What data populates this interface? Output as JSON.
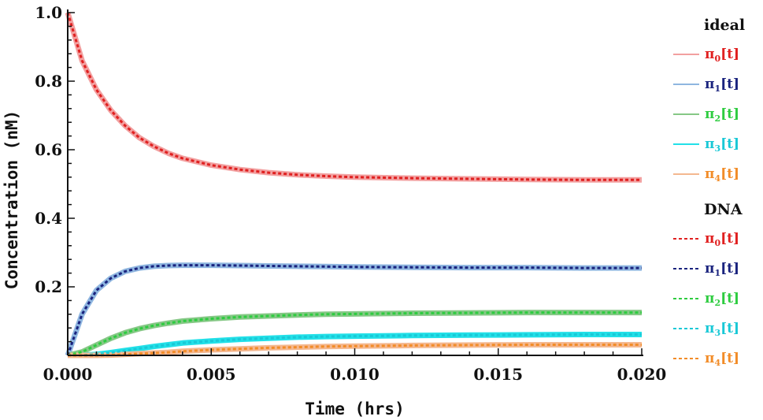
{
  "chart_data": {
    "type": "line",
    "xlabel": "Time (hrs)",
    "ylabel": "Concentration (nM)",
    "xlim": [
      0,
      0.02
    ],
    "ylim": [
      0,
      1.0
    ],
    "x_ticks": [
      "0.000",
      "0.005",
      "0.010",
      "0.015",
      "0.020"
    ],
    "x_tick_values": [
      0,
      0.005,
      0.01,
      0.015,
      0.02
    ],
    "y_ticks": [
      "0.2",
      "0.4",
      "0.6",
      "0.8",
      "1.0"
    ],
    "y_tick_values": [
      0.2,
      0.4,
      0.6,
      0.8,
      1.0
    ],
    "grid": false,
    "legend_placement": "right",
    "legend_groups": [
      {
        "title": "ideal",
        "style": "solid",
        "entries": [
          {
            "name": "π",
            "sub": "0",
            "suffix": "[t]",
            "line_color": "#f2a0a0",
            "text_color": "#e02020"
          },
          {
            "name": "π",
            "sub": "1",
            "suffix": "[t]",
            "line_color": "#8fb6e0",
            "text_color": "#1a237e"
          },
          {
            "name": "π",
            "sub": "2",
            "suffix": "[t]",
            "line_color": "#86c886",
            "text_color": "#2ecc40"
          },
          {
            "name": "π",
            "sub": "3",
            "suffix": "[t]",
            "line_color": "#22e0e8",
            "text_color": "#19c8d6"
          },
          {
            "name": "π",
            "sub": "4",
            "suffix": "[t]",
            "line_color": "#f4b890",
            "text_color": "#f28c28"
          }
        ]
      },
      {
        "title": "DNA",
        "style": "dashed",
        "entries": [
          {
            "name": "π",
            "sub": "0",
            "suffix": "[t]",
            "line_color": "#e02020",
            "text_color": "#e02020"
          },
          {
            "name": "π",
            "sub": "1",
            "suffix": "[t]",
            "line_color": "#1a237e",
            "text_color": "#1a237e"
          },
          {
            "name": "π",
            "sub": "2",
            "suffix": "[t]",
            "line_color": "#2ecc40",
            "text_color": "#2ecc40"
          },
          {
            "name": "π",
            "sub": "3",
            "suffix": "[t]",
            "line_color": "#19c8d6",
            "text_color": "#19c8d6"
          },
          {
            "name": "π",
            "sub": "4",
            "suffix": "[t]",
            "line_color": "#f28c28",
            "text_color": "#f28c28"
          }
        ]
      }
    ],
    "x": [
      0,
      0.0005,
      0.001,
      0.0015,
      0.002,
      0.0025,
      0.003,
      0.0035,
      0.004,
      0.005,
      0.006,
      0.007,
      0.008,
      0.009,
      0.01,
      0.012,
      0.014,
      0.016,
      0.018,
      0.02
    ],
    "series": [
      {
        "name": "π0[t]",
        "ideal_color": "#f2a0a0",
        "dna_color": "#e02020",
        "values": [
          1.0,
          0.86,
          0.775,
          0.715,
          0.67,
          0.635,
          0.61,
          0.59,
          0.575,
          0.555,
          0.542,
          0.533,
          0.527,
          0.523,
          0.52,
          0.517,
          0.515,
          0.513,
          0.512,
          0.512
        ]
      },
      {
        "name": "π1[t]",
        "ideal_color": "#8fb6e0",
        "dna_color": "#1a237e",
        "values": [
          0.0,
          0.12,
          0.19,
          0.225,
          0.245,
          0.255,
          0.26,
          0.262,
          0.263,
          0.263,
          0.262,
          0.261,
          0.26,
          0.259,
          0.258,
          0.257,
          0.256,
          0.256,
          0.255,
          0.255
        ]
      },
      {
        "name": "π2[t]",
        "ideal_color": "#86c886",
        "dna_color": "#2ecc40",
        "values": [
          0.0,
          0.01,
          0.03,
          0.05,
          0.066,
          0.078,
          0.087,
          0.094,
          0.1,
          0.107,
          0.112,
          0.115,
          0.118,
          0.12,
          0.121,
          0.123,
          0.124,
          0.125,
          0.125,
          0.125
        ]
      },
      {
        "name": "π3[t]",
        "ideal_color": "#22e0e8",
        "dna_color": "#19c8d6",
        "values": [
          0.0,
          0.0,
          0.003,
          0.008,
          0.014,
          0.02,
          0.026,
          0.031,
          0.036,
          0.042,
          0.047,
          0.05,
          0.053,
          0.055,
          0.056,
          0.058,
          0.059,
          0.06,
          0.061,
          0.061
        ]
      },
      {
        "name": "π4[t]",
        "ideal_color": "#f4b890",
        "dna_color": "#f28c28",
        "values": [
          0.0,
          0.0,
          0.0,
          0.001,
          0.003,
          0.005,
          0.007,
          0.009,
          0.012,
          0.016,
          0.019,
          0.022,
          0.024,
          0.026,
          0.027,
          0.029,
          0.03,
          0.031,
          0.031,
          0.031
        ]
      }
    ]
  }
}
